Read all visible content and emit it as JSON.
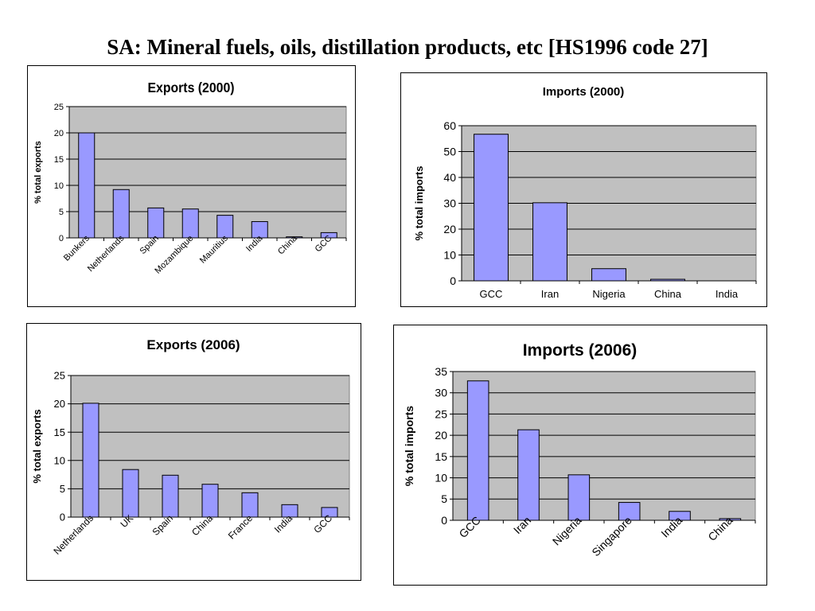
{
  "page": {
    "title": "SA: Mineral fuels, oils, distillation products, etc [HS1996 code 27]"
  },
  "chart_data": [
    {
      "type": "bar",
      "title": "Exports (2000)",
      "ylabel": "% total exports",
      "xlabel": "",
      "categories": [
        "Bunkers",
        "Netherlands",
        "Spain",
        "Mozambique",
        "Mauritius",
        "India",
        "China",
        "GCC"
      ],
      "values": [
        20,
        9.2,
        5.7,
        5.5,
        4.3,
        3.1,
        0.2,
        1.0
      ],
      "ylim": [
        0,
        25
      ],
      "yticks": [
        0,
        5,
        10,
        15,
        20,
        25
      ],
      "grid": true,
      "bar_color": "#9999ff",
      "plot_bg": "#c0c0c0"
    },
    {
      "type": "bar",
      "title": "Imports (2000)",
      "ylabel": "% total imports",
      "xlabel": "",
      "categories": [
        "GCC",
        "Iran",
        "Nigeria",
        "China",
        "India"
      ],
      "values": [
        56.7,
        30.2,
        4.7,
        0.6,
        0
      ],
      "ylim": [
        0,
        60
      ],
      "yticks": [
        0,
        10,
        20,
        30,
        40,
        50,
        60
      ],
      "grid": true,
      "bar_color": "#9999ff",
      "plot_bg": "#c0c0c0"
    },
    {
      "type": "bar",
      "title": "Exports (2006)",
      "ylabel": "% total exports",
      "xlabel": "",
      "categories": [
        "Netherlands",
        "UK",
        "Spain",
        "China",
        "France",
        "India",
        "GCC"
      ],
      "values": [
        20.1,
        8.4,
        7.4,
        5.8,
        4.3,
        2.2,
        1.7
      ],
      "ylim": [
        0,
        25
      ],
      "yticks": [
        0,
        5,
        10,
        15,
        20,
        25
      ],
      "grid": true,
      "bar_color": "#9999ff",
      "plot_bg": "#c0c0c0"
    },
    {
      "type": "bar",
      "title": "Imports (2006)",
      "ylabel": "% total imports",
      "xlabel": "",
      "categories": [
        "GCC",
        "Iran",
        "Nigeria",
        "Singapore",
        "India",
        "China"
      ],
      "values": [
        32.8,
        21.3,
        10.7,
        4.2,
        2.1,
        0.4
      ],
      "ylim": [
        0,
        35
      ],
      "yticks": [
        0,
        5,
        10,
        15,
        20,
        25,
        30,
        35
      ],
      "grid": true,
      "bar_color": "#9999ff",
      "plot_bg": "#c0c0c0"
    }
  ]
}
